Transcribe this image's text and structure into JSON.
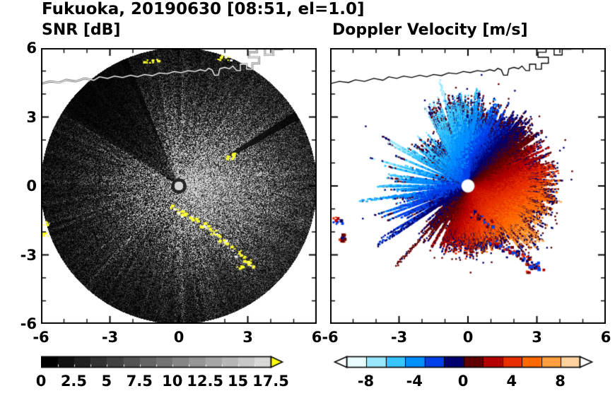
{
  "title": "Fukuoka, 20190630 [08:51, el=1.0]",
  "station": "Fukuoka",
  "date": "20190630",
  "time": "08:51",
  "elevation_deg": "1.0",
  "chart_data": [
    {
      "type": "heatmap",
      "id": "snr",
      "title": "SNR [dB]",
      "xlim": [
        -6,
        6
      ],
      "ylim": [
        -6,
        6
      ],
      "xtick_values": [
        -6,
        -3,
        0,
        3,
        6
      ],
      "xtick_labels": [
        "-6",
        "-3",
        "0",
        "3",
        "6"
      ],
      "ytick_values": [
        -6,
        -3,
        0,
        3,
        6
      ],
      "ytick_labels": [
        "-6",
        "-3",
        "0",
        "3",
        "6"
      ],
      "minor_tick_step": 1,
      "colorbar": {
        "min": 0,
        "max": 17.5,
        "n_segments": 14,
        "tick_values": [
          0,
          2.5,
          5,
          7.5,
          10,
          12.5,
          15,
          17.5
        ],
        "tick_labels": [
          "0",
          "2.5",
          "5",
          "7.5",
          "10",
          "12.5",
          "15",
          "17.5"
        ],
        "low_color": "#000000",
        "high_color": "#d8d8d8",
        "over_arrow_color": "#ffff00"
      },
      "features": {
        "disk_radius_km": 6,
        "center_km": [
          0,
          0
        ],
        "bright_sector_azimuth_deg": 95,
        "dark_wedges_deg": [
          [
            302,
            338
          ],
          [
            57.5,
            61
          ]
        ],
        "clutter_color": "#ffff2e",
        "clutter_points_km": [
          [
            -0.25,
            -0.85
          ],
          [
            0.0,
            -1.05
          ],
          [
            0.22,
            -1.22
          ],
          [
            0.45,
            -1.38
          ],
          [
            0.7,
            -1.48
          ],
          [
            0.95,
            -1.62
          ],
          [
            1.18,
            -1.82
          ],
          [
            1.42,
            -2.02
          ],
          [
            1.65,
            -2.12
          ],
          [
            1.88,
            -2.32
          ],
          [
            2.1,
            -2.52
          ],
          [
            2.32,
            -2.68
          ],
          [
            2.55,
            -2.92
          ],
          [
            2.75,
            -3.12
          ],
          [
            2.95,
            -3.28
          ],
          [
            2.62,
            -3.45
          ],
          [
            3.12,
            -3.42
          ],
          [
            -5.8,
            -1.6
          ],
          [
            -5.85,
            -2.05
          ],
          [
            -1.45,
            5.42
          ],
          [
            -1.1,
            5.52
          ],
          [
            1.7,
            5.6
          ],
          [
            2.15,
            5.55
          ]
        ],
        "clutter_spot_km": [
          2.2,
          1.32
        ],
        "coastline_color": "#ffffff"
      }
    },
    {
      "type": "heatmap",
      "id": "doppler",
      "title": "Doppler Velocity [m/s]",
      "xlim": [
        -6,
        6
      ],
      "ylim": [
        -6,
        6
      ],
      "xtick_values": [
        -6,
        -3,
        0,
        3,
        6
      ],
      "xtick_labels": [
        "-6",
        "-3",
        "0",
        "3",
        "6"
      ],
      "ytick_values": [
        -6,
        -3,
        0,
        3,
        6
      ],
      "ytick_labels": [],
      "minor_tick_step": 1,
      "colorbar": {
        "min": -9.6,
        "max": 9.6,
        "colors": [
          "#e8fbff",
          "#9ae8ff",
          "#38c6ff",
          "#0090ff",
          "#0040e8",
          "#000070",
          "#600000",
          "#b40000",
          "#e83000",
          "#ff6a00",
          "#ffa040",
          "#ffd2a0"
        ],
        "tick_values": [
          -8,
          -4,
          0,
          4,
          8
        ],
        "tick_labels": [
          "-8",
          "-4",
          "0",
          "4",
          "8"
        ],
        "under_arrow_color": "#ffffff",
        "over_arrow_color": "#ffffff"
      },
      "features": {
        "background": "#ffffff",
        "flow_away_azimuth_deg": 135,
        "flow_toward_azimuth_deg": 315,
        "echo_max_radius_km": 4.5,
        "center_hole_radius_km": 0.28,
        "west_rays_deg": [
          222,
          237,
          245,
          253,
          262,
          270,
          278,
          345,
          352,
          358,
          5
        ],
        "clutter_points_km": [
          [
            0.25,
            -1.2
          ],
          [
            0.55,
            -1.4
          ],
          [
            0.85,
            -1.6
          ],
          [
            1.05,
            -2.35
          ],
          [
            1.3,
            -2.5
          ],
          [
            1.55,
            -2.62
          ],
          [
            1.8,
            -2.76
          ],
          [
            2.02,
            -2.9
          ],
          [
            2.25,
            -3.02
          ],
          [
            2.48,
            -3.12
          ],
          [
            2.65,
            -3.3
          ],
          [
            2.88,
            -3.42
          ],
          [
            3.08,
            -3.52
          ],
          [
            2.7,
            -3.58
          ]
        ],
        "edge_patches_km": [
          [
            -5.7,
            -1.5
          ],
          [
            -5.42,
            -2.2
          ]
        ],
        "clutter_palette": [
          "#000070",
          "#600000",
          "#b40000",
          "#0040e8",
          "#e83000"
        ],
        "coastline_color": "#000000"
      }
    }
  ],
  "coastline_km": [
    [
      [
        -6.0,
        4.45
      ],
      [
        -5.6,
        4.55
      ],
      [
        -5.2,
        4.5
      ],
      [
        -4.9,
        4.62
      ],
      [
        -4.5,
        4.55
      ],
      [
        -4.1,
        4.68
      ],
      [
        -3.7,
        4.6
      ],
      [
        -3.45,
        4.75
      ],
      [
        -3.1,
        4.68
      ],
      [
        -2.8,
        4.78
      ],
      [
        -2.45,
        4.72
      ],
      [
        -2.1,
        4.82
      ],
      [
        -1.8,
        4.75
      ],
      [
        -1.5,
        4.85
      ],
      [
        -1.15,
        4.8
      ],
      [
        -0.85,
        4.92
      ],
      [
        -0.5,
        4.88
      ],
      [
        -0.2,
        4.98
      ],
      [
        0.1,
        4.93
      ],
      [
        0.4,
        5.02
      ],
      [
        0.7,
        4.98
      ],
      [
        0.95,
        5.06
      ],
      [
        1.15,
        5.0
      ],
      [
        1.3,
        5.12
      ],
      [
        1.45,
        5.05
      ],
      [
        1.55,
        4.82
      ],
      [
        1.72,
        4.82
      ],
      [
        1.78,
        5.1
      ],
      [
        2.0,
        5.16
      ],
      [
        2.2,
        5.1
      ],
      [
        2.35,
        5.22
      ],
      [
        2.52,
        5.02
      ],
      [
        2.68,
        5.02
      ],
      [
        2.68,
        5.3
      ],
      [
        2.95,
        5.3
      ],
      [
        2.95,
        5.08
      ],
      [
        3.2,
        5.08
      ],
      [
        3.2,
        5.34
      ],
      [
        3.5,
        5.34
      ],
      [
        3.5,
        5.6
      ],
      [
        3.05,
        5.6
      ],
      [
        3.05,
        5.82
      ],
      [
        3.4,
        5.82
      ],
      [
        3.4,
        6.05
      ]
    ],
    [
      [
        3.75,
        6.05
      ],
      [
        3.75,
        5.7
      ],
      [
        4.1,
        5.7
      ],
      [
        4.1,
        5.95
      ],
      [
        4.5,
        5.95
      ],
      [
        4.55,
        6.05
      ]
    ]
  ]
}
